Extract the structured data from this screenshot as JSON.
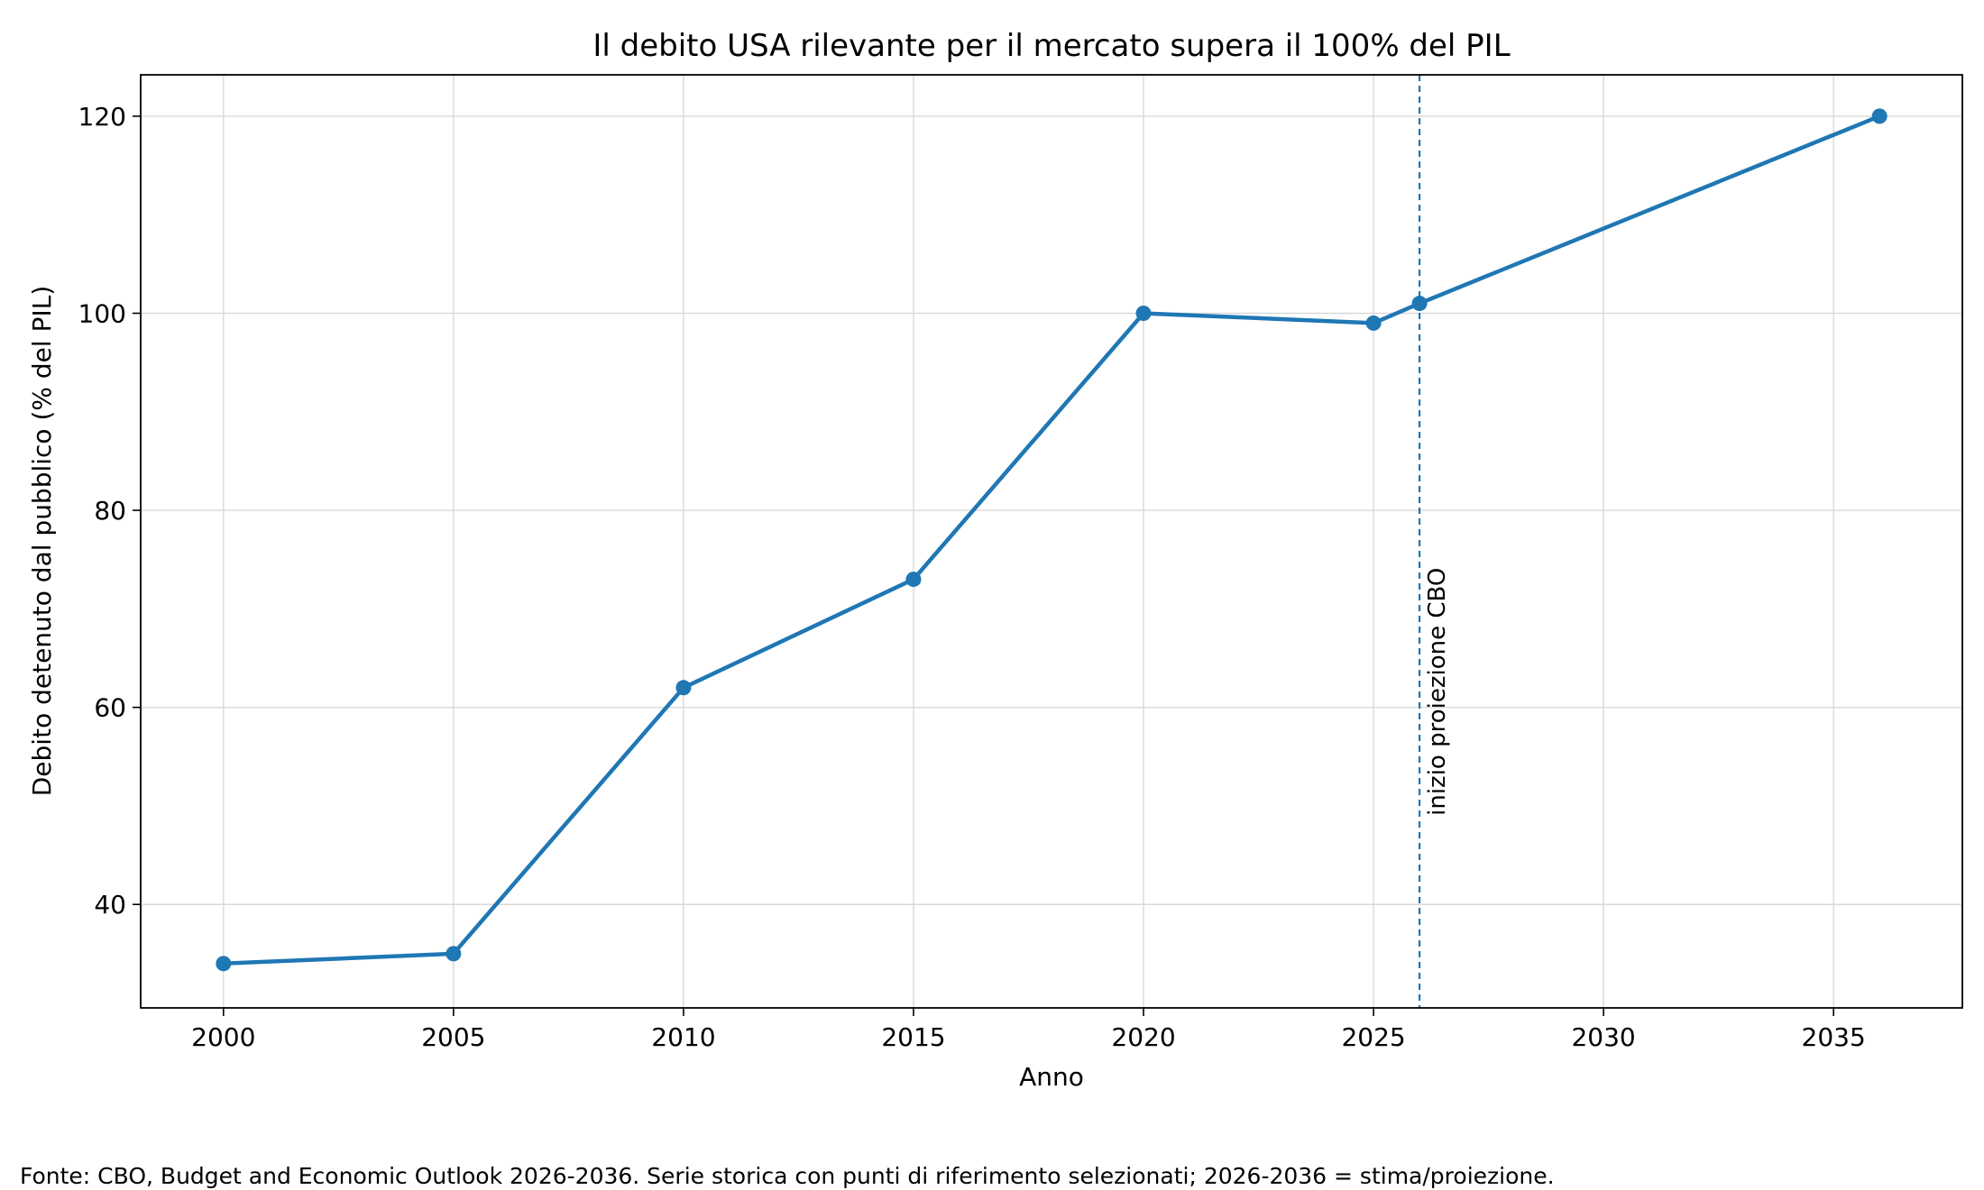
{
  "chart_data": {
    "type": "line",
    "title": "Il debito USA rilevante per il mercato supera il 100% del PIL",
    "xlabel": "Anno",
    "ylabel": "Debito detenuto dal pubblico (% del PIL)",
    "xlim": [
      1998.2,
      2037.8
    ],
    "ylim": [
      29.5,
      124.2
    ],
    "xticks": [
      2000,
      2005,
      2010,
      2015,
      2020,
      2025,
      2030,
      2035
    ],
    "yticks": [
      40,
      60,
      80,
      100,
      120
    ],
    "grid": true,
    "series": [
      {
        "color": "#1f77b4",
        "points": [
          {
            "x": 2000,
            "y": 34
          },
          {
            "x": 2005,
            "y": 35
          },
          {
            "x": 2010,
            "y": 62
          },
          {
            "x": 2015,
            "y": 73
          },
          {
            "x": 2020,
            "y": 100
          },
          {
            "x": 2025,
            "y": 99
          },
          {
            "x": 2026,
            "y": 101
          },
          {
            "x": 2036,
            "y": 120
          }
        ]
      }
    ],
    "annotations": [
      {
        "type": "vline",
        "x": 2026,
        "style": "dashed",
        "color": "#1f77b4",
        "label": "inizio proiezione CBO"
      }
    ]
  },
  "footnote": "Fonte: CBO, Budget and Economic Outlook 2026-2036. Serie storica con punti di riferimento selezionati; 2026-2036 = stima/proiezione."
}
